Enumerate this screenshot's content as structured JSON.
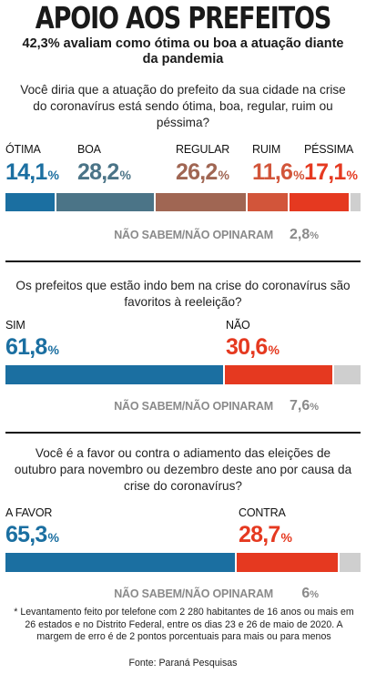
{
  "title": "APOIO AOS PREFEITOS",
  "subtitle": "42,3% avaliam como ótima ou boa a atuação diante da pandemia",
  "footnote": "* Levantamento feito por telefone com 2 280 habitantes de 16 anos ou mais em 26 estados e no Distrito Federal, entre os dias 23 e 26 de maio de 2020. A margem de erro é de 2 pontos porcentuais para mais ou para menos",
  "source": "Fonte: Paraná Pesquisas",
  "chart_data": [
    {
      "type": "bar",
      "orientation": "horizontal-stacked",
      "question": "Você diria que a atuação do prefeito da sua cidade na crise do coronavírus está sendo ótima, boa, regular, ruim ou péssima?",
      "categories": [
        "ÓTIMA",
        "BOA",
        "REGULAR",
        "RUIM",
        "PÉSSIMA",
        "NÃO SABEM/NÃO OPINARAM"
      ],
      "values": [
        14.1,
        28.2,
        26.2,
        11.6,
        17.1,
        2.8
      ],
      "labels": [
        "14,1",
        "28,2",
        "26,2",
        "11,6",
        "17,1",
        "2,8"
      ],
      "unit": "%",
      "colors": [
        "#1b6fa1",
        "#4b7487",
        "#a06653",
        "#d2553a",
        "#e53920",
        "#cfcfcf"
      ]
    },
    {
      "type": "bar",
      "orientation": "horizontal-stacked",
      "question": "Os prefeitos que estão indo bem na crise do coronavírus são favoritos à reeleição?",
      "categories": [
        "SIM",
        "NÃO",
        "NÃO SABEM/NÃO OPINARAM"
      ],
      "values": [
        61.8,
        30.6,
        7.6
      ],
      "labels": [
        "61,8",
        "30,6",
        "7,6"
      ],
      "unit": "%",
      "colors": [
        "#1b6fa1",
        "#e53920",
        "#cfcfcf"
      ]
    },
    {
      "type": "bar",
      "orientation": "horizontal-stacked",
      "question": "Você é a favor ou contra o adiamento das eleições de outubro para novembro ou dezembro deste ano por causa da crise do coronavírus?",
      "categories": [
        "A FAVOR",
        "CONTRA",
        "NÃO SABEM/NÃO OPINARAM"
      ],
      "values": [
        65.3,
        28.7,
        6.0
      ],
      "labels": [
        "65,3",
        "28,7",
        "6"
      ],
      "unit": "%",
      "colors": [
        "#1b6fa1",
        "#e53920",
        "#cfcfcf"
      ]
    }
  ]
}
